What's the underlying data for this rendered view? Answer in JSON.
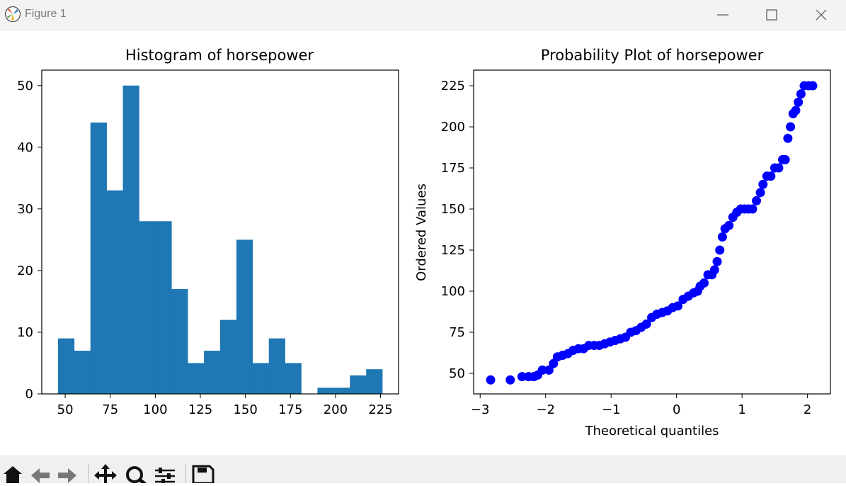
{
  "window": {
    "title": "Figure 1",
    "icons": {
      "app": "matplotlib-logo-icon",
      "minimize": "minimize-icon",
      "maximize": "maximize-icon",
      "close": "close-icon"
    }
  },
  "toolbar": {
    "buttons": [
      "home-icon",
      "back-arrow-icon",
      "forward-arrow-icon",
      "pan-move-icon",
      "zoom-magnifier-icon",
      "configure-subplots-icon",
      "save-disk-icon"
    ]
  },
  "colors": {
    "bar": "#1f77b4",
    "points": "#0000ff",
    "axes": "#000000"
  },
  "chart_data": [
    {
      "type": "bar",
      "title": "Histogram of horsepower",
      "xlabel": "",
      "ylabel": "",
      "bins": [
        {
          "start": 46.0,
          "end": 55.0,
          "count": 9
        },
        {
          "start": 55.0,
          "end": 64.0,
          "count": 7
        },
        {
          "start": 64.0,
          "end": 73.0,
          "count": 44
        },
        {
          "start": 73.0,
          "end": 82.0,
          "count": 33
        },
        {
          "start": 82.0,
          "end": 91.0,
          "count": 50
        },
        {
          "start": 91.0,
          "end": 100.0,
          "count": 28
        },
        {
          "start": 100.0,
          "end": 109.0,
          "count": 28
        },
        {
          "start": 109.0,
          "end": 118.0,
          "count": 17
        },
        {
          "start": 118.0,
          "end": 127.0,
          "count": 5
        },
        {
          "start": 127.0,
          "end": 136.0,
          "count": 7
        },
        {
          "start": 136.0,
          "end": 145.0,
          "count": 12
        },
        {
          "start": 145.0,
          "end": 154.0,
          "count": 25
        },
        {
          "start": 154.0,
          "end": 163.0,
          "count": 5
        },
        {
          "start": 163.0,
          "end": 172.0,
          "count": 9
        },
        {
          "start": 172.0,
          "end": 181.0,
          "count": 5
        },
        {
          "start": 181.0,
          "end": 190.0,
          "count": 0
        },
        {
          "start": 190.0,
          "end": 199.0,
          "count": 1
        },
        {
          "start": 199.0,
          "end": 208.0,
          "count": 1
        },
        {
          "start": 208.0,
          "end": 217.0,
          "count": 3
        },
        {
          "start": 217.0,
          "end": 226.0,
          "count": 4
        }
      ],
      "xlim": [
        37.0,
        235.0
      ],
      "ylim": [
        0,
        52.5
      ],
      "xticks": [
        50,
        75,
        100,
        125,
        150,
        175,
        200,
        225
      ],
      "xtick_labels": [
        "50",
        "75",
        "100",
        "125",
        "150",
        "175",
        "200",
        "225"
      ],
      "yticks": [
        0,
        10,
        20,
        30,
        40,
        50
      ],
      "ytick_labels": [
        "0",
        "10",
        "20",
        "30",
        "40",
        "50"
      ],
      "grid": false,
      "legend": "none"
    },
    {
      "type": "scatter",
      "title": "Probability Plot of horsepower",
      "xlabel": "Theoretical quantiles",
      "ylabel": "Ordered Values",
      "points": [
        [
          -2.84,
          46
        ],
        [
          -2.54,
          46
        ],
        [
          -2.36,
          48
        ],
        [
          -2.26,
          48
        ],
        [
          -2.18,
          48
        ],
        [
          -2.12,
          49
        ],
        [
          -2.05,
          52
        ],
        [
          -1.95,
          52
        ],
        [
          -1.88,
          56
        ],
        [
          -1.82,
          60
        ],
        [
          -1.74,
          61
        ],
        [
          -1.66,
          62
        ],
        [
          -1.58,
          64
        ],
        [
          -1.5,
          65
        ],
        [
          -1.42,
          65
        ],
        [
          -1.34,
          67
        ],
        [
          -1.26,
          67
        ],
        [
          -1.18,
          67
        ],
        [
          -1.1,
          68
        ],
        [
          -1.02,
          69
        ],
        [
          -0.94,
          70
        ],
        [
          -0.86,
          71
        ],
        [
          -0.78,
          72
        ],
        [
          -0.7,
          75
        ],
        [
          -0.62,
          76
        ],
        [
          -0.54,
          78
        ],
        [
          -0.46,
          80
        ],
        [
          -0.38,
          84
        ],
        [
          -0.3,
          86
        ],
        [
          -0.22,
          87
        ],
        [
          -0.14,
          88
        ],
        [
          -0.06,
          90
        ],
        [
          0.02,
          91
        ],
        [
          0.1,
          95
        ],
        [
          0.18,
          97
        ],
        [
          0.26,
          99
        ],
        [
          0.32,
          100
        ],
        [
          0.36,
          103
        ],
        [
          0.42,
          105
        ],
        [
          0.48,
          110
        ],
        [
          0.54,
          110
        ],
        [
          0.58,
          113
        ],
        [
          0.62,
          118
        ],
        [
          0.66,
          125
        ],
        [
          0.7,
          133
        ],
        [
          0.74,
          138
        ],
        [
          0.8,
          140
        ],
        [
          0.86,
          145
        ],
        [
          0.92,
          148
        ],
        [
          0.98,
          150
        ],
        [
          1.04,
          150
        ],
        [
          1.1,
          150
        ],
        [
          1.16,
          150
        ],
        [
          1.22,
          155
        ],
        [
          1.28,
          160
        ],
        [
          1.32,
          165
        ],
        [
          1.38,
          170
        ],
        [
          1.44,
          170
        ],
        [
          1.5,
          175
        ],
        [
          1.56,
          175
        ],
        [
          1.62,
          180
        ],
        [
          1.66,
          180
        ],
        [
          1.7,
          193
        ],
        [
          1.74,
          200
        ],
        [
          1.78,
          208
        ],
        [
          1.82,
          210
        ],
        [
          1.86,
          215
        ],
        [
          1.9,
          220
        ],
        [
          1.95,
          225
        ],
        [
          2.02,
          225
        ],
        [
          2.08,
          225
        ]
      ],
      "xlim": [
        -3.1,
        2.35
      ],
      "ylim": [
        37.5,
        234.5
      ],
      "xticks": [
        -3,
        -2,
        -1,
        0,
        1,
        2
      ],
      "xtick_labels": [
        "−3",
        "−2",
        "−1",
        "0",
        "1",
        "2"
      ],
      "yticks": [
        50,
        75,
        100,
        125,
        150,
        175,
        200,
        225
      ],
      "ytick_labels": [
        "50",
        "75",
        "100",
        "125",
        "150",
        "175",
        "200",
        "225"
      ],
      "grid": false,
      "legend": "none"
    }
  ]
}
